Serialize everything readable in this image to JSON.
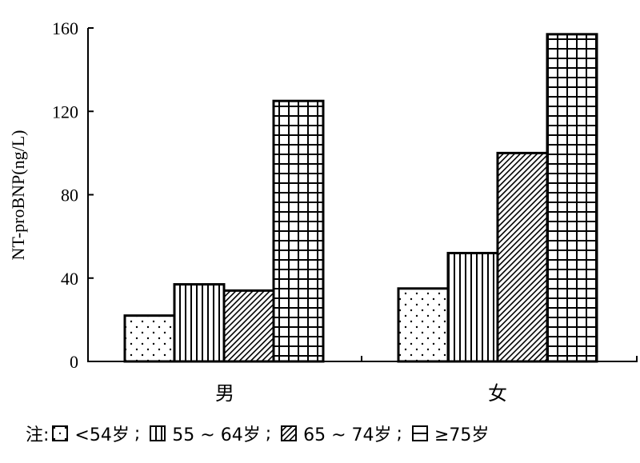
{
  "chart_data": {
    "type": "bar",
    "ylabel": "NT-proBNP(ng/L)",
    "xlabel": "",
    "ylim": [
      0,
      160
    ],
    "yticks": [
      "0",
      "40",
      "80",
      "120",
      "160"
    ],
    "categories": [
      "男",
      "女"
    ],
    "series": [
      {
        "name": "<54岁",
        "values": [
          22,
          35
        ],
        "pattern": "dots"
      },
      {
        "name": "55 ~ 64岁",
        "values": [
          37,
          52
        ],
        "pattern": "vertical"
      },
      {
        "name": "65 ~ 74岁",
        "values": [
          34,
          100
        ],
        "pattern": "diagonal"
      },
      {
        "name": "≥75岁",
        "values": [
          125,
          157
        ],
        "pattern": "grid"
      }
    ],
    "grid": false
  },
  "legend": {
    "prefix": "注:",
    "separator": ";"
  }
}
